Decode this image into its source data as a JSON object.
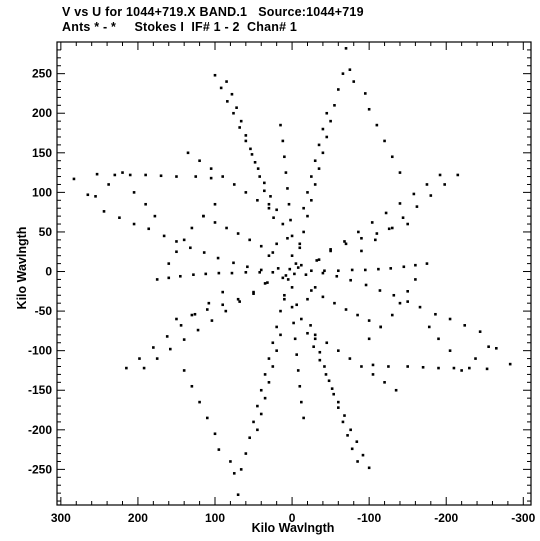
{
  "header": {
    "line1": "V vs U for 1044+719.X BAND.1   Source:1044+719",
    "line2": "Ants * - *     Stokes I  IF# 1 - 2  Chan# 1"
  },
  "chart_data": {
    "type": "scatter",
    "title": "V vs U for 1044+719.X BAND.1   Source:1044+719",
    "subtitle": "Ants * - *     Stokes I  IF# 1 - 2  Chan# 1",
    "xlabel": "Kilo Wavlngth",
    "ylabel": "Kilo Wavlngth",
    "xlim": [
      305,
      -310
    ],
    "ylim": [
      -295,
      290
    ],
    "x_ticks": [
      300,
      200,
      100,
      0,
      -100,
      -200,
      -300
    ],
    "y_ticks": [
      250,
      200,
      150,
      100,
      50,
      0,
      -50,
      -100,
      -150,
      -200,
      -250
    ],
    "marker_color": "#000000",
    "symmetry": "point-symmetric (u,v) and (-u,-v) both plotted",
    "points": [
      [
        283,
        117
      ],
      [
        265,
        97
      ],
      [
        253,
        123
      ],
      [
        230,
        122
      ],
      [
        210,
        122
      ],
      [
        190,
        122
      ],
      [
        170,
        121
      ],
      [
        150,
        120
      ],
      [
        125,
        120
      ],
      [
        105,
        118
      ],
      [
        244,
        76
      ],
      [
        224,
        68
      ],
      [
        205,
        60
      ],
      [
        186,
        54
      ],
      [
        166,
        45
      ],
      [
        150,
        38
      ],
      [
        132,
        30
      ],
      [
        114,
        24
      ],
      [
        96,
        17
      ],
      [
        76,
        11
      ],
      [
        58,
        6
      ],
      [
        40,
        2
      ],
      [
        192,
        -122
      ],
      [
        175,
        -110
      ],
      [
        158,
        -98
      ],
      [
        140,
        -86
      ],
      [
        122,
        -74
      ],
      [
        104,
        -62
      ],
      [
        86,
        -50
      ],
      [
        68,
        -38
      ],
      [
        50,
        -26
      ],
      [
        32,
        -14
      ],
      [
        175,
        -10
      ],
      [
        160,
        -8
      ],
      [
        145,
        -6
      ],
      [
        128,
        -4
      ],
      [
        112,
        -3
      ],
      [
        95,
        -2
      ],
      [
        78,
        -2
      ],
      [
        60,
        -1
      ],
      [
        42,
        -1
      ],
      [
        25,
        -1
      ],
      [
        100,
        248
      ],
      [
        92,
        232
      ],
      [
        84,
        215
      ],
      [
        76,
        200
      ],
      [
        68,
        182
      ],
      [
        60,
        165
      ],
      [
        52,
        148
      ],
      [
        44,
        130
      ],
      [
        36,
        112
      ],
      [
        28,
        95
      ],
      [
        20,
        78
      ],
      [
        12,
        60
      ],
      [
        6,
        42
      ],
      [
        85,
        240
      ],
      [
        78,
        224
      ],
      [
        72,
        207
      ],
      [
        66,
        190
      ],
      [
        60,
        172
      ],
      [
        54,
        155
      ],
      [
        48,
        138
      ],
      [
        42,
        120
      ],
      [
        36,
        102
      ],
      [
        30,
        85
      ],
      [
        24,
        68
      ],
      [
        15,
        185
      ],
      [
        12,
        165
      ],
      [
        10,
        145
      ],
      [
        8,
        125
      ],
      [
        6,
        105
      ],
      [
        4,
        85
      ],
      [
        2,
        65
      ],
      [
        0,
        45
      ],
      [
        70,
        -282
      ],
      [
        66,
        -250
      ],
      [
        60,
        -230
      ],
      [
        55,
        -210
      ],
      [
        50,
        -190
      ],
      [
        45,
        -170
      ],
      [
        40,
        -150
      ],
      [
        35,
        -130
      ],
      [
        30,
        -110
      ],
      [
        25,
        -90
      ],
      [
        20,
        -70
      ],
      [
        15,
        -50
      ],
      [
        10,
        -30
      ],
      [
        -70,
        282
      ],
      [
        -66,
        250
      ],
      [
        -60,
        230
      ],
      [
        -55,
        210
      ],
      [
        -50,
        190
      ],
      [
        -45,
        170
      ],
      [
        -40,
        150
      ],
      [
        -35,
        130
      ],
      [
        -30,
        110
      ],
      [
        -25,
        90
      ],
      [
        -20,
        70
      ],
      [
        -15,
        50
      ],
      [
        -10,
        30
      ],
      [
        -100,
        -248
      ],
      [
        -92,
        -232
      ],
      [
        -84,
        -215
      ],
      [
        -76,
        -200
      ],
      [
        -68,
        -182
      ],
      [
        -60,
        -165
      ],
      [
        -52,
        -148
      ],
      [
        -44,
        -130
      ],
      [
        -36,
        -112
      ],
      [
        -28,
        -95
      ],
      [
        -20,
        -78
      ],
      [
        -12,
        -60
      ],
      [
        -6,
        -42
      ],
      [
        -85,
        -240
      ],
      [
        -78,
        -224
      ],
      [
        -72,
        -207
      ],
      [
        -66,
        -190
      ],
      [
        -60,
        -172
      ],
      [
        -54,
        -155
      ],
      [
        -48,
        -138
      ],
      [
        -42,
        -120
      ],
      [
        -36,
        -102
      ],
      [
        -30,
        -85
      ],
      [
        -24,
        -68
      ],
      [
        -15,
        -185
      ],
      [
        -12,
        -165
      ],
      [
        -10,
        -145
      ],
      [
        -8,
        -125
      ],
      [
        -6,
        -105
      ],
      [
        -4,
        -85
      ],
      [
        -2,
        -65
      ],
      [
        0,
        -45
      ],
      [
        -283,
        -117
      ],
      [
        -265,
        -97
      ],
      [
        -253,
        -123
      ],
      [
        -230,
        -122
      ],
      [
        -210,
        -122
      ],
      [
        -190,
        -122
      ],
      [
        -170,
        -121
      ],
      [
        -150,
        -120
      ],
      [
        -125,
        -120
      ],
      [
        -105,
        -118
      ],
      [
        -244,
        -76
      ],
      [
        -224,
        -68
      ],
      [
        -205,
        -60
      ],
      [
        -186,
        -54
      ],
      [
        -166,
        -45
      ],
      [
        -150,
        -38
      ],
      [
        -132,
        -30
      ],
      [
        -114,
        -24
      ],
      [
        -96,
        -17
      ],
      [
        -76,
        -11
      ],
      [
        -58,
        -6
      ],
      [
        -40,
        -2
      ],
      [
        -192,
        122
      ],
      [
        -175,
        110
      ],
      [
        -158,
        98
      ],
      [
        -140,
        86
      ],
      [
        -122,
        74
      ],
      [
        -104,
        62
      ],
      [
        -86,
        50
      ],
      [
        -68,
        38
      ],
      [
        -50,
        26
      ],
      [
        -32,
        14
      ],
      [
        -175,
        10
      ],
      [
        -160,
        8
      ],
      [
        -145,
        6
      ],
      [
        -128,
        4
      ],
      [
        -112,
        3
      ],
      [
        -95,
        2
      ],
      [
        -78,
        2
      ],
      [
        -60,
        1
      ],
      [
        -42,
        1
      ],
      [
        -25,
        1
      ],
      [
        -215,
        122
      ],
      [
        -198,
        110
      ],
      [
        -180,
        96
      ],
      [
        -162,
        82
      ],
      [
        -144,
        68
      ],
      [
        -126,
        54
      ],
      [
        -108,
        40
      ],
      [
        -90,
        26
      ],
      [
        215,
        -122
      ],
      [
        198,
        -110
      ],
      [
        180,
        -96
      ],
      [
        162,
        -82
      ],
      [
        144,
        -68
      ],
      [
        126,
        -54
      ],
      [
        108,
        -40
      ],
      [
        90,
        -26
      ],
      [
        135,
        150
      ],
      [
        120,
        140
      ],
      [
        105,
        130
      ],
      [
        90,
        120
      ],
      [
        75,
        110
      ],
      [
        60,
        100
      ],
      [
        45,
        90
      ],
      [
        30,
        80
      ],
      [
        -135,
        -150
      ],
      [
        -120,
        -140
      ],
      [
        -105,
        -130
      ],
      [
        -90,
        -120
      ],
      [
        -75,
        -110
      ],
      [
        -60,
        -100
      ],
      [
        -45,
        -90
      ],
      [
        -30,
        -80
      ],
      [
        150,
        -60
      ],
      [
        130,
        -55
      ],
      [
        110,
        -48
      ],
      [
        90,
        -42
      ],
      [
        70,
        -35
      ],
      [
        50,
        -28
      ],
      [
        -150,
        60
      ],
      [
        -130,
        55
      ],
      [
        -110,
        48
      ],
      [
        -90,
        42
      ],
      [
        -70,
        35
      ],
      [
        -50,
        28
      ],
      [
        115,
        70
      ],
      [
        100,
        62
      ],
      [
        85,
        55
      ],
      [
        70,
        48
      ],
      [
        55,
        40
      ],
      [
        40,
        32
      ],
      [
        25,
        24
      ],
      [
        -115,
        -70
      ],
      [
        -100,
        -62
      ],
      [
        -85,
        -55
      ],
      [
        -70,
        -48
      ],
      [
        -55,
        -40
      ],
      [
        -40,
        -32
      ],
      [
        -25,
        -24
      ],
      [
        45,
        -200
      ],
      [
        40,
        -180
      ],
      [
        35,
        -160
      ],
      [
        30,
        -140
      ],
      [
        25,
        -120
      ],
      [
        20,
        -100
      ],
      [
        15,
        -80
      ],
      [
        -45,
        200
      ],
      [
        -40,
        180
      ],
      [
        -35,
        160
      ],
      [
        -30,
        140
      ],
      [
        -25,
        120
      ],
      [
        -20,
        100
      ],
      [
        -15,
        80
      ],
      [
        -75,
        255
      ],
      [
        -80,
        240
      ],
      [
        -95,
        225
      ],
      [
        -100,
        205
      ],
      [
        -110,
        185
      ],
      [
        -120,
        165
      ],
      [
        -130,
        145
      ],
      [
        -140,
        125
      ],
      [
        75,
        -255
      ],
      [
        80,
        -240
      ],
      [
        95,
        -225
      ],
      [
        100,
        -205
      ],
      [
        110,
        -185
      ],
      [
        120,
        -165
      ],
      [
        130,
        -145
      ],
      [
        140,
        -125
      ],
      [
        -160,
        -10
      ],
      [
        -150,
        -25
      ],
      [
        -140,
        -40
      ],
      [
        -130,
        -55
      ],
      [
        -115,
        -70
      ],
      [
        -100,
        -85
      ],
      [
        160,
        10
      ],
      [
        150,
        25
      ],
      [
        140,
        40
      ],
      [
        130,
        55
      ],
      [
        115,
        70
      ],
      [
        100,
        85
      ],
      [
        -255,
        -95
      ],
      [
        -238,
        -110
      ],
      [
        -220,
        -125
      ],
      [
        -205,
        -100
      ],
      [
        -190,
        -85
      ],
      [
        -178,
        -70
      ],
      [
        255,
        95
      ],
      [
        238,
        110
      ],
      [
        220,
        125
      ],
      [
        205,
        100
      ],
      [
        190,
        85
      ],
      [
        178,
        70
      ],
      [
        -5,
        10
      ],
      [
        5,
        -10
      ],
      [
        -8,
        5
      ],
      [
        8,
        -5
      ],
      [
        -3,
        -3
      ],
      [
        3,
        3
      ],
      [
        -12,
        8
      ],
      [
        12,
        -8
      ],
      [
        -18,
        -4
      ],
      [
        18,
        4
      ],
      [
        0,
        20
      ],
      [
        0,
        -20
      ],
      [
        30,
        20
      ],
      [
        -30,
        -20
      ],
      [
        20,
        35
      ],
      [
        -20,
        -35
      ],
      [
        35,
        -15
      ],
      [
        -35,
        15
      ],
      [
        10,
        -35
      ],
      [
        -10,
        35
      ]
    ]
  }
}
